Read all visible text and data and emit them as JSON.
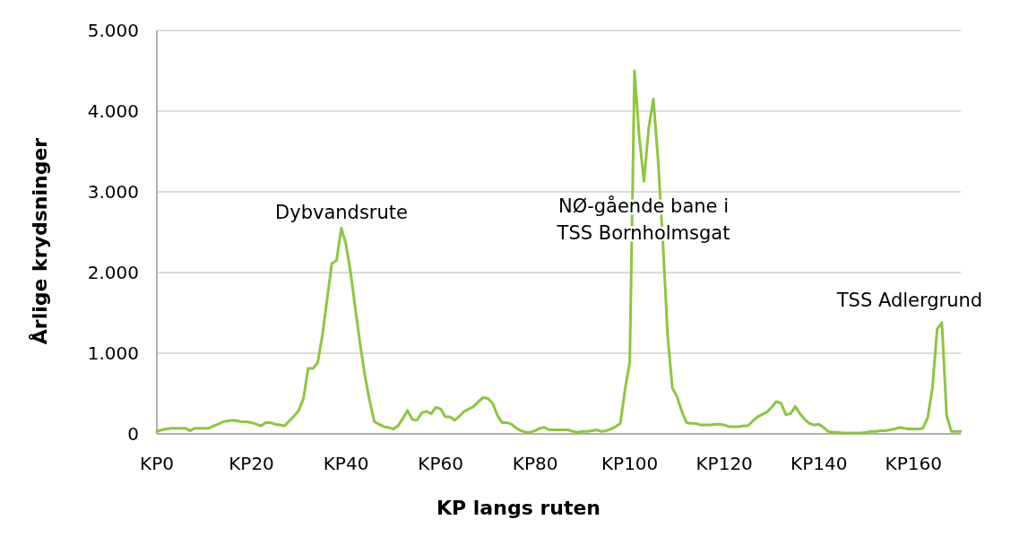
{
  "chart_data": {
    "type": "line",
    "xlabel": "KP langs ruten",
    "ylabel": "Årlige krydsninger",
    "categories": [
      "KP0",
      null,
      null,
      null,
      null,
      null,
      null,
      null,
      null,
      null,
      null,
      null,
      null,
      null,
      null,
      null,
      null,
      null,
      null,
      null,
      "KP20",
      null,
      null,
      null,
      null,
      null,
      null,
      null,
      null,
      null,
      null,
      null,
      null,
      null,
      null,
      null,
      null,
      null,
      null,
      null,
      "KP40",
      null,
      null,
      null,
      null,
      null,
      null,
      null,
      null,
      null,
      null,
      null,
      null,
      null,
      null,
      null,
      null,
      null,
      null,
      null,
      "KP60",
      null,
      null,
      null,
      null,
      null,
      null,
      null,
      null,
      null,
      null,
      null,
      null,
      null,
      null,
      null,
      null,
      null,
      null,
      null,
      "KP80",
      null,
      null,
      null,
      null,
      null,
      null,
      null,
      null,
      null,
      null,
      null,
      null,
      null,
      null,
      null,
      null,
      null,
      null,
      null,
      "KP100",
      null,
      null,
      null,
      null,
      null,
      null,
      null,
      null,
      null,
      null,
      null,
      null,
      null,
      null,
      null,
      null,
      null,
      null,
      null,
      "KP120",
      null,
      null,
      null,
      null,
      null,
      null,
      null,
      null,
      null,
      null,
      null,
      null,
      null,
      null,
      null,
      null,
      null,
      null,
      null,
      "KP140",
      null,
      null,
      null,
      null,
      null,
      null,
      null,
      null,
      null,
      null,
      null,
      null,
      null,
      null,
      null,
      null,
      null,
      null,
      null,
      "KP160",
      null,
      null,
      null,
      null,
      null,
      null,
      null,
      null,
      null,
      null
    ],
    "ylim": [
      0,
      5000
    ],
    "yticks": [
      0,
      {
        "value": 1000,
        "label": "1.000"
      },
      {
        "value": 2000,
        "label": "2.000"
      },
      {
        "value": 3000,
        "label": "3.000"
      },
      {
        "value": 4000,
        "label": "4.000"
      },
      {
        "value": 5000,
        "label": "5.000"
      }
    ],
    "grid": "y",
    "marker": "none",
    "line_style": "solid",
    "annotations": [
      "Dybvandsrute",
      "NØ-gående bane i\nTSS Bornholmsgat",
      "TSS Adlergrund"
    ],
    "series": [
      {
        "color": "#8dc63f",
        "values": [
          30,
          50,
          60,
          70,
          70,
          70,
          70,
          40,
          70,
          70,
          70,
          70,
          100,
          120,
          150,
          160,
          170,
          160,
          150,
          150,
          140,
          120,
          100,
          140,
          140,
          120,
          110,
          100,
          160,
          220,
          290,
          440,
          810,
          810,
          880,
          1220,
          1670,
          2110,
          2150,
          2550,
          2350,
          1990,
          1540,
          1110,
          720,
          410,
          150,
          120,
          90,
          80,
          60,
          100,
          190,
          290,
          180,
          170,
          260,
          280,
          250,
          330,
          310,
          210,
          210,
          170,
          220,
          280,
          310,
          340,
          400,
          450,
          440,
          380,
          230,
          140,
          140,
          120,
          70,
          40,
          20,
          20,
          40,
          70,
          80,
          50,
          50,
          50,
          50,
          50,
          30,
          20,
          30,
          30,
          40,
          50,
          30,
          40,
          60,
          90,
          130,
          550,
          890,
          4500,
          3690,
          3130,
          3790,
          4150,
          3380,
          2380,
          1230,
          570,
          460,
          280,
          140,
          130,
          130,
          110,
          110,
          110,
          120,
          120,
          110,
          90,
          90,
          90,
          100,
          100,
          160,
          210,
          240,
          270,
          330,
          400,
          380,
          240,
          250,
          340,
          250,
          180,
          130,
          110,
          120,
          80,
          30,
          20,
          20,
          10,
          10,
          10,
          10,
          10,
          20,
          30,
          30,
          40,
          40,
          50,
          60,
          80,
          70,
          60,
          60,
          60,
          70,
          200,
          570,
          1300,
          1380,
          230,
          30,
          30,
          30
        ]
      }
    ]
  }
}
